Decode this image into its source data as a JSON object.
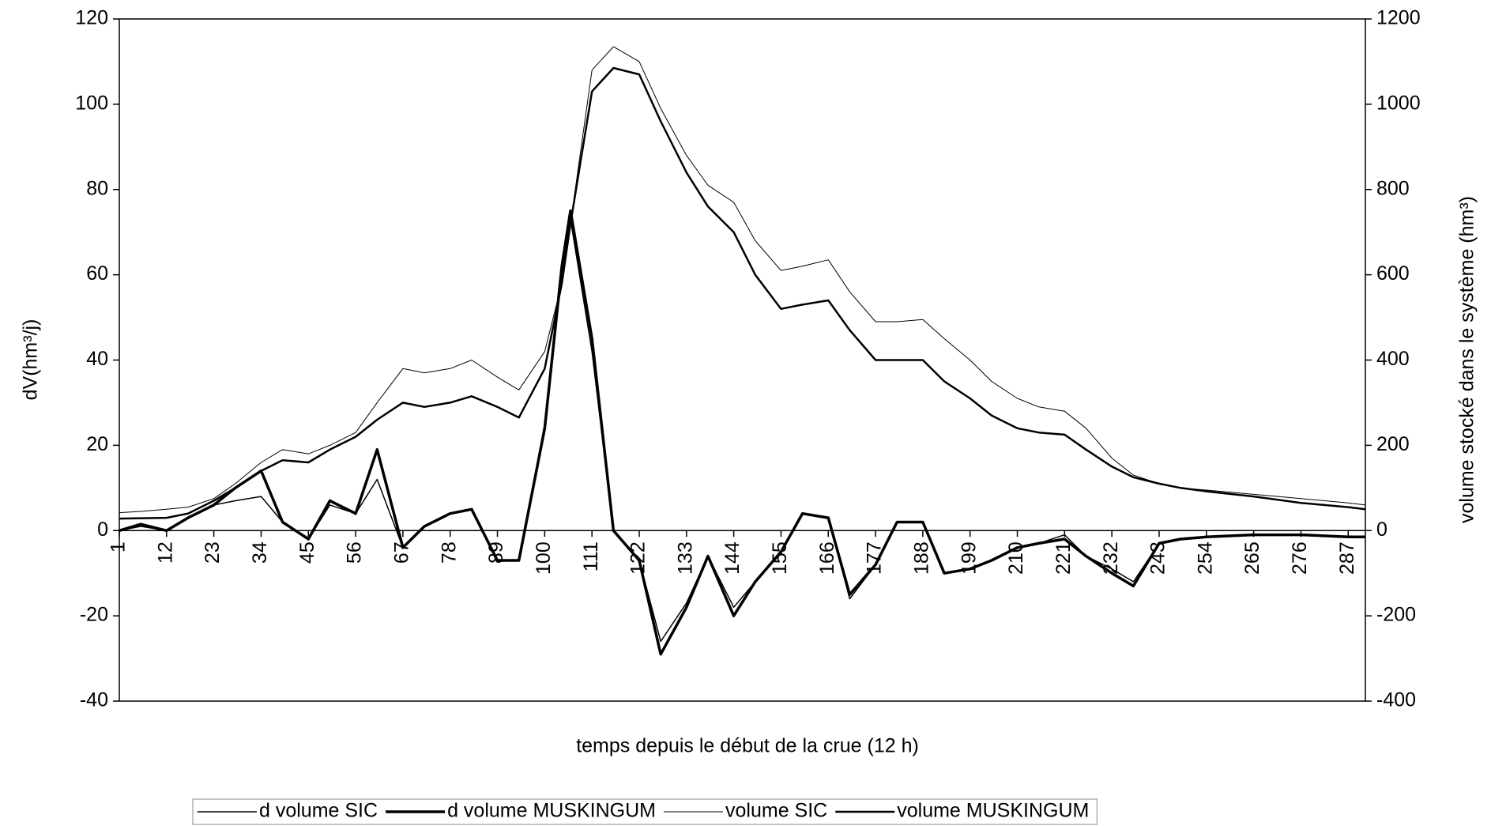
{
  "chart_data": {
    "type": "line",
    "xlabel": "temps depuis le début de la crue (12 h)",
    "ylabel": "dV(hm³/j)",
    "y2label": "volume stocké dans le système (hm³)",
    "x": [
      1,
      6,
      12,
      17,
      23,
      28,
      34,
      39,
      45,
      50,
      56,
      61,
      67,
      72,
      78,
      83,
      89,
      94,
      100,
      104,
      106,
      111,
      116,
      122,
      127,
      133,
      138,
      144,
      149,
      155,
      160,
      166,
      171,
      177,
      182,
      188,
      193,
      199,
      204,
      210,
      215,
      221,
      226,
      232,
      237,
      243,
      248,
      254,
      265,
      276,
      287,
      291
    ],
    "xlim": [
      1,
      291
    ],
    "xticks": [
      1,
      12,
      23,
      34,
      45,
      56,
      67,
      78,
      89,
      100,
      111,
      122,
      133,
      144,
      155,
      166,
      177,
      188,
      199,
      210,
      221,
      232,
      243,
      254,
      265,
      276,
      287
    ],
    "ylim": [
      -40,
      120
    ],
    "yticks": [
      -40,
      -20,
      0,
      20,
      40,
      60,
      80,
      100,
      120
    ],
    "y2lim": [
      -400,
      1200
    ],
    "y2ticks": [
      -400,
      -200,
      0,
      200,
      400,
      600,
      800,
      1000,
      1200
    ],
    "legend": "bottom",
    "series": [
      {
        "name": "d volume SIC",
        "color": "#000000",
        "line_width": 1.5,
        "values": [
          0,
          1,
          0,
          3,
          6,
          7,
          8,
          2,
          -2,
          6,
          4,
          12,
          -4,
          1,
          4,
          5,
          -7,
          -7,
          25,
          60,
          73,
          42,
          0,
          -7,
          -26,
          -17,
          -6,
          -18,
          -12,
          -5,
          4,
          3,
          -16,
          -8,
          2,
          2,
          -10,
          -9,
          -7,
          -4,
          -3,
          -1,
          -6,
          -9,
          -12,
          -3,
          -2,
          -1.5,
          -1,
          -1,
          -1.5,
          -1.5
        ]
      },
      {
        "name": "d volume MUSKINGUM",
        "color": "#000000",
        "line_width": 3.5,
        "values": [
          0,
          1.5,
          0,
          3,
          6,
          10,
          14,
          2,
          -2,
          7,
          4,
          19,
          -4,
          1,
          4,
          5,
          -7,
          -7,
          24,
          62,
          75,
          45,
          0,
          -7,
          -29,
          -18,
          -6,
          -20,
          -12,
          -5,
          4,
          3,
          -15,
          -8,
          2,
          2,
          -10,
          -9,
          -7,
          -4,
          -3,
          -2,
          -6,
          -10,
          -13,
          -3,
          -2,
          -1.5,
          -1,
          -1,
          -1.5,
          -1.5
        ]
      },
      {
        "name": "volume SIC",
        "color": "#000000",
        "line_width": 1,
        "axis": "y2",
        "values": [
          42,
          45,
          50,
          55,
          75,
          110,
          160,
          190,
          180,
          200,
          230,
          300,
          380,
          370,
          380,
          400,
          360,
          330,
          420,
          580,
          720,
          1080,
          1135,
          1100,
          990,
          880,
          810,
          770,
          680,
          610,
          620,
          635,
          560,
          490,
          490,
          495,
          450,
          400,
          350,
          310,
          290,
          280,
          240,
          170,
          130,
          110,
          100,
          95,
          85,
          75,
          65,
          60
        ]
      },
      {
        "name": "volume MUSKINGUM",
        "color": "#000000",
        "line_width": 2.5,
        "axis": "y2",
        "values": [
          28,
          29,
          30,
          40,
          70,
          100,
          140,
          165,
          160,
          190,
          220,
          260,
          300,
          290,
          300,
          315,
          290,
          265,
          380,
          580,
          720,
          1030,
          1085,
          1070,
          960,
          840,
          760,
          700,
          600,
          520,
          530,
          540,
          470,
          400,
          400,
          400,
          350,
          310,
          270,
          240,
          230,
          225,
          190,
          150,
          125,
          110,
          100,
          92,
          80,
          65,
          55,
          50
        ]
      }
    ]
  }
}
